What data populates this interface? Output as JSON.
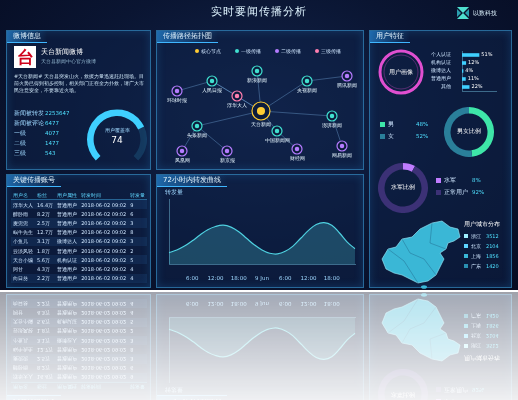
{
  "header": {
    "title": "实时要闻传播分析",
    "logo": "以数科技"
  },
  "weibo_info": {
    "panel_title": "微博信息",
    "logo_char": "台",
    "account": "天台新闻微博",
    "account_desc": "天台县新闻中心官方微博",
    "content": "#天台新闻# 天台县突发山火，救援力量迅速赶赴现场。目前火势已得到初步控制，相关部门正在全力扑救，请广大市民注意安全，不要靠近火场。",
    "stats": [
      {
        "label": "新闻被转发",
        "value": 2253647
      },
      {
        "label": "新闻被评论",
        "value": 6477
      },
      {
        "label": "一级",
        "value": 4077
      },
      {
        "label": "二级",
        "value": 1477
      },
      {
        "label": "三级",
        "value": 543
      }
    ],
    "coverage": {
      "label": "用户覆盖率",
      "value": 74,
      "range": [
        0,
        100
      ]
    }
  },
  "topology": {
    "panel_title": "传播路径拓扑图",
    "legend": [
      {
        "name": "核心节点",
        "color": "#ffcc33"
      },
      {
        "name": "一级传播",
        "color": "#40e0d0"
      },
      {
        "name": "二级传播",
        "color": "#b57cff"
      },
      {
        "name": "三级传播",
        "color": "#ff7fb0"
      }
    ],
    "nodes": [
      {
        "label": "天台新闻",
        "level": 0
      },
      {
        "label": "人民日报",
        "level": 1
      },
      {
        "label": "头条新闻",
        "level": 1
      },
      {
        "label": "新京报",
        "level": 2
      },
      {
        "label": "央视新闻",
        "level": 1
      },
      {
        "label": "澎湃新闻",
        "level": 1
      },
      {
        "label": "财经网",
        "level": 2
      },
      {
        "label": "新浪新闻",
        "level": 1
      },
      {
        "label": "环球时报",
        "level": 2
      },
      {
        "label": "凤凰网",
        "level": 2
      },
      {
        "label": "中国新闻网",
        "level": 1
      },
      {
        "label": "网易新闻",
        "level": 2
      },
      {
        "label": "腾讯新闻",
        "level": 2
      },
      {
        "label": "浮华大人",
        "level": 3
      }
    ],
    "edges": [
      [
        0,
        1
      ],
      [
        0,
        2
      ],
      [
        0,
        4
      ],
      [
        0,
        5
      ],
      [
        0,
        7
      ],
      [
        0,
        10
      ],
      [
        0,
        13
      ],
      [
        1,
        8
      ],
      [
        2,
        9
      ],
      [
        2,
        3
      ],
      [
        4,
        12
      ],
      [
        5,
        11
      ],
      [
        10,
        6
      ],
      [
        13,
        1
      ]
    ]
  },
  "key_accounts": {
    "panel_title": "关键传播账号",
    "columns": [
      "用户名",
      "粉丝",
      "用户属性",
      "转发时间",
      "转发量"
    ],
    "rows": [
      [
        "浮华大人",
        "16.4万",
        "普通用户",
        "2018-06-02 09:02",
        "9"
      ],
      [
        "醉卧雨",
        "8.2万",
        "普通用户",
        "2018-06-02 09:02",
        "6"
      ],
      [
        "麦兜兜",
        "2.5万",
        "普通用户",
        "2018-06-02 09:02",
        "3"
      ],
      [
        "蜗牛先生",
        "12.7万",
        "普通用户",
        "2018-06-02 09:02",
        "8"
      ],
      [
        "小鱼儿",
        "3.1万",
        "微博达人",
        "2018-06-02 09:02",
        "3"
      ],
      [
        "云淡风轻",
        "1.8万",
        "普通用户",
        "2018-06-02 09:02",
        "2"
      ],
      [
        "天台小编",
        "5.6万",
        "机构认证",
        "2018-06-02 09:02",
        "5"
      ],
      [
        "阿甘",
        "4.3万",
        "普通用户",
        "2018-06-02 09:02",
        "4"
      ],
      [
        "向日葵",
        "2.2万",
        "普通用户",
        "2018-06-02 09:02",
        "4"
      ]
    ]
  },
  "user_features": {
    "panel_title": "用户特征",
    "city_distribution": {
      "title": "用户城市分布",
      "rows": [
        {
          "name": "浙江",
          "value": 3512
        },
        {
          "name": "北京",
          "value": 2104
        },
        {
          "name": "上海",
          "value": 1856
        },
        {
          "name": "广东",
          "value": 1420
        }
      ]
    }
  },
  "chart_data": [
    {
      "type": "line",
      "title": "72小时内转发曲线",
      "y_label": "转发量",
      "categories": [
        null,
        null,
        null,
        "6:00",
        null,
        null,
        "12:00",
        null,
        null,
        "18:00",
        null,
        null,
        "9 Jun",
        null,
        null,
        "6:00",
        null,
        null,
        "12:00",
        null,
        null,
        "18:00",
        null,
        null,
        null
      ],
      "values": [
        18,
        22,
        28,
        36,
        45,
        53,
        58,
        60,
        57,
        50,
        40,
        30,
        22,
        17,
        16,
        20,
        28,
        40,
        52,
        61,
        64,
        60,
        48,
        34,
        24
      ],
      "color": "#4fd1e0",
      "ylim": [
        0,
        100
      ],
      "grid": false,
      "tick_labels": "x"
    },
    {
      "type": "bar",
      "title": "用户画像",
      "orientation": "horizontal",
      "categories": [
        "个人认证",
        "机构认证",
        "微博达人",
        "普通用户",
        "其他"
      ],
      "values": [
        51,
        12,
        4,
        11,
        22
      ],
      "value_labels": [
        "51%",
        "12%",
        "4%",
        "11%",
        "22%"
      ],
      "color": "#3fd0ff",
      "xlim": [
        0,
        100
      ],
      "grid": false,
      "tick_labels": "y",
      "data_labels": true
    },
    {
      "type": "doughnut",
      "title": "男女比例",
      "categories": [
        "男",
        "女"
      ],
      "values": [
        48,
        52
      ],
      "value_labels": [
        "48%",
        "52%"
      ],
      "colors": [
        "#3ee6a8",
        "#2a7f9a"
      ],
      "legend": "left"
    },
    {
      "type": "doughnut",
      "title": "水军比例",
      "categories": [
        "水军",
        "正常用户"
      ],
      "values": [
        8,
        92
      ],
      "value_labels": [
        "8%",
        "92%"
      ],
      "colors": [
        "#c07cff",
        "#3c3176"
      ],
      "legend": "right"
    }
  ]
}
